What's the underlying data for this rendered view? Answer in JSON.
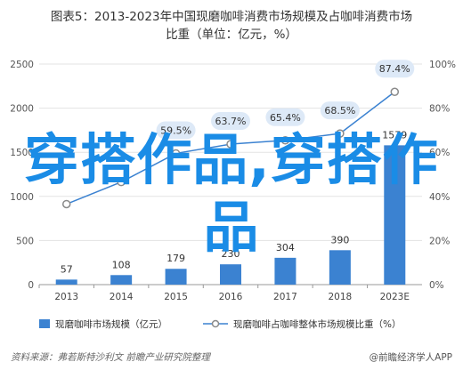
{
  "title_line1": "图表5：2013-2023年中国现磨咖啡消费市场规模及占咖啡消费市场",
  "title_line2": "比重（单位：亿元，%）",
  "chart_data": {
    "type": "bar",
    "categories": [
      "2013",
      "2014",
      "2015",
      "2016",
      "2017",
      "2018",
      "2023E"
    ],
    "series": [
      {
        "name": "现磨咖啡市场规模（亿元）",
        "kind": "bar",
        "axis": "left",
        "values": [
          57,
          108,
          179,
          230,
          304,
          390,
          1579
        ],
        "labels": [
          "57",
          "108",
          "179",
          "230",
          "304",
          "390",
          "1579"
        ]
      },
      {
        "name": "现磨咖啡占咖啡整体市场规模比重（%）",
        "kind": "line",
        "axis": "right",
        "values": [
          36.5,
          46.5,
          59.5,
          63.7,
          65.4,
          68.5,
          87.4
        ],
        "labels": [
          "",
          "",
          "59.5%",
          "63.7%",
          "65.4%",
          "68.5%",
          "87.4%"
        ]
      }
    ],
    "yleft": {
      "ticks": [
        "0",
        "500",
        "1000",
        "1500",
        "2000",
        "2500"
      ],
      "lim": [
        0,
        2500
      ]
    },
    "yright": {
      "ticks": [
        "0%",
        "20%",
        "40%",
        "60%",
        "80%",
        "100%"
      ],
      "lim": [
        0,
        100
      ]
    },
    "legend_position": "bottom",
    "bar_color": "#3b82d1",
    "line_color": "#3b82d1",
    "label_bg": "#dde9f7"
  },
  "overlay_text": "穿搭作品,穿搭作品",
  "source": "资料来源：弗若斯特沙利文 前瞻产业研究院整理",
  "brand": "@前瞻经济学人APP"
}
